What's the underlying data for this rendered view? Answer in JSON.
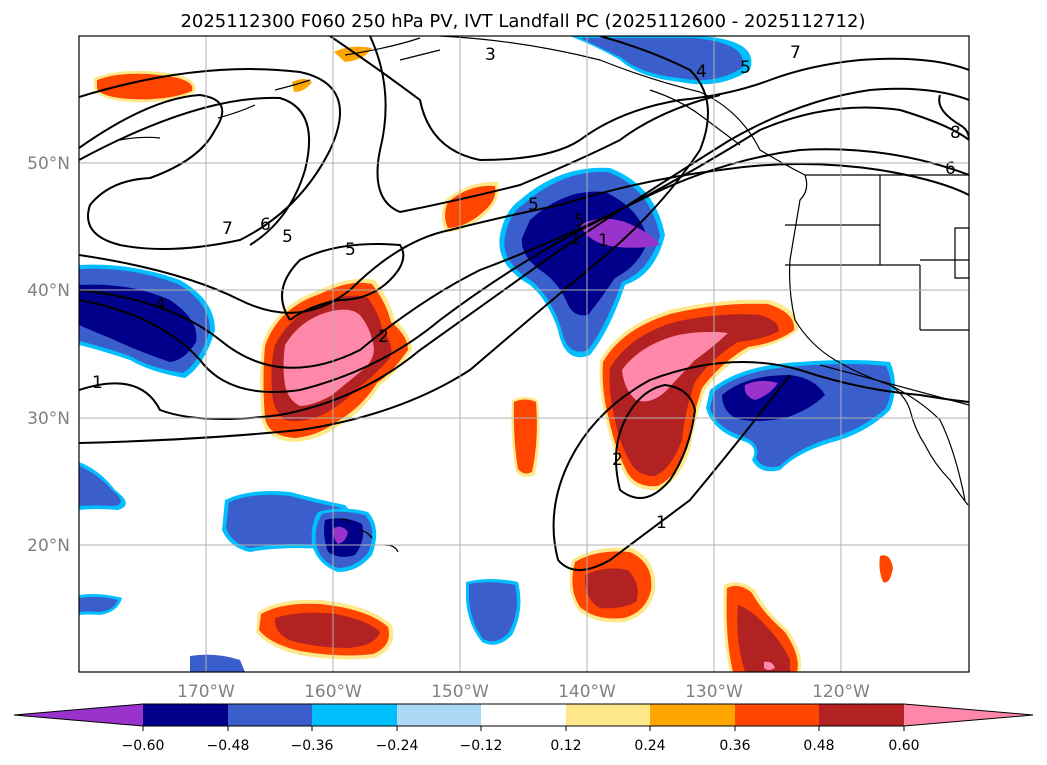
{
  "map": {
    "title": "2025112300 F060 250 hPa PV, IVT Landfall PC (2025112600 - 2025112712)",
    "lat_labels": [
      "50°N",
      "40°N",
      "30°N",
      "20°N"
    ],
    "lon_labels": [
      "170°W",
      "160°W",
      "150°W",
      "140°W",
      "130°W",
      "120°W"
    ],
    "colorbar": {
      "ticks": [
        "−0.60",
        "−0.48",
        "−0.36",
        "−0.24",
        "−0.12",
        "0.12",
        "0.24",
        "0.36",
        "0.48",
        "0.60"
      ],
      "colors": [
        "#9933cc",
        "#00008b",
        "#3a5fcd",
        "#00bfff",
        "#add8f5",
        "#ffffff",
        "#ffe88a",
        "#ffa500",
        "#ff4500",
        "#b22222",
        "#ff88aa"
      ]
    },
    "contour_labels": [
      "3",
      "4",
      "5",
      "7",
      "8",
      "6",
      "7",
      "6",
      "5",
      "5",
      "5",
      "1",
      "4",
      "2",
      "1",
      "2",
      "1",
      "5",
      "1"
    ]
  }
}
